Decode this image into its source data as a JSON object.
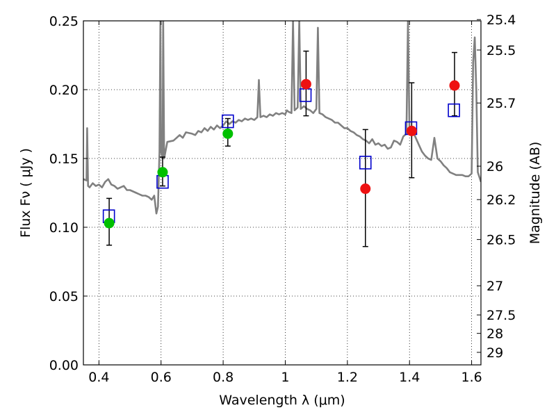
{
  "chart_data": {
    "type": "scatter",
    "title": "",
    "xlabel": "Wavelength  λ (μm)",
    "ylabel": "Flux  Fν  ( μJy )",
    "ylabel_right": "Magnitude (AB)",
    "xlim": [
      0.35,
      1.63
    ],
    "ylim": [
      0.0,
      0.25
    ],
    "grid": true,
    "x_ticks": [
      0.4,
      0.6,
      0.8,
      1.0,
      1.2,
      1.4,
      1.6
    ],
    "x_tick_labels": [
      "0.4",
      "0.6",
      "0.8",
      "1",
      "1.2",
      "1.4",
      "1.6"
    ],
    "y_ticks": [
      0.0,
      0.05,
      0.1,
      0.15,
      0.2,
      0.25
    ],
    "y_tick_labels": [
      "0.00",
      "0.05",
      "0.10",
      "0.15",
      "0.20",
      "0.25"
    ],
    "right_ticks": [
      {
        "label": "25.4",
        "flux": 0.2509
      },
      {
        "label": "25.5",
        "flux": 0.2288
      },
      {
        "label": "25.7",
        "flux": 0.1903
      },
      {
        "label": "26",
        "flux": 0.1444
      },
      {
        "label": "26.2",
        "flux": 0.1201
      },
      {
        "label": "26.5",
        "flux": 0.0911
      },
      {
        "label": "27",
        "flux": 0.0575
      },
      {
        "label": "27.5",
        "flux": 0.0363
      },
      {
        "label": "28",
        "flux": 0.0229
      },
      {
        "label": "29",
        "flux": 0.0091
      }
    ],
    "series": [
      {
        "kind": "line",
        "color": "#808080",
        "points": [
          [
            0.35,
            0.135
          ],
          [
            0.36,
            0.134
          ],
          [
            0.362,
            0.172
          ],
          [
            0.365,
            0.13
          ],
          [
            0.37,
            0.129
          ],
          [
            0.38,
            0.132
          ],
          [
            0.39,
            0.13
          ],
          [
            0.4,
            0.131
          ],
          [
            0.41,
            0.129
          ],
          [
            0.42,
            0.133
          ],
          [
            0.43,
            0.135
          ],
          [
            0.44,
            0.131
          ],
          [
            0.45,
            0.13
          ],
          [
            0.46,
            0.128
          ],
          [
            0.47,
            0.129
          ],
          [
            0.48,
            0.13
          ],
          [
            0.49,
            0.127
          ],
          [
            0.5,
            0.127
          ],
          [
            0.51,
            0.126
          ],
          [
            0.52,
            0.125
          ],
          [
            0.53,
            0.124
          ],
          [
            0.54,
            0.123
          ],
          [
            0.55,
            0.123
          ],
          [
            0.56,
            0.122
          ],
          [
            0.57,
            0.12
          ],
          [
            0.578,
            0.123
          ],
          [
            0.585,
            0.11
          ],
          [
            0.59,
            0.115
          ],
          [
            0.595,
            0.155
          ],
          [
            0.598,
            0.25
          ],
          [
            0.6,
            0.155
          ],
          [
            0.605,
            0.15
          ],
          [
            0.607,
            0.25
          ],
          [
            0.61,
            0.15
          ],
          [
            0.62,
            0.162
          ],
          [
            0.64,
            0.163
          ],
          [
            0.65,
            0.165
          ],
          [
            0.66,
            0.167
          ],
          [
            0.67,
            0.165
          ],
          [
            0.68,
            0.169
          ],
          [
            0.7,
            0.168
          ],
          [
            0.71,
            0.167
          ],
          [
            0.72,
            0.17
          ],
          [
            0.73,
            0.169
          ],
          [
            0.74,
            0.172
          ],
          [
            0.75,
            0.17
          ],
          [
            0.76,
            0.173
          ],
          [
            0.77,
            0.171
          ],
          [
            0.78,
            0.174
          ],
          [
            0.79,
            0.172
          ],
          [
            0.8,
            0.174
          ],
          [
            0.81,
            0.177
          ],
          [
            0.82,
            0.175
          ],
          [
            0.83,
            0.177
          ],
          [
            0.84,
            0.176
          ],
          [
            0.85,
            0.178
          ],
          [
            0.86,
            0.177
          ],
          [
            0.87,
            0.179
          ],
          [
            0.88,
            0.178
          ],
          [
            0.89,
            0.179
          ],
          [
            0.9,
            0.178
          ],
          [
            0.91,
            0.18
          ],
          [
            0.915,
            0.207
          ],
          [
            0.92,
            0.18
          ],
          [
            0.93,
            0.181
          ],
          [
            0.94,
            0.18
          ],
          [
            0.95,
            0.182
          ],
          [
            0.96,
            0.181
          ],
          [
            0.97,
            0.183
          ],
          [
            0.98,
            0.182
          ],
          [
            0.99,
            0.183
          ],
          [
            1.0,
            0.182
          ],
          [
            1.005,
            0.185
          ],
          [
            1.01,
            0.184
          ],
          [
            1.02,
            0.183
          ],
          [
            1.025,
            0.25
          ],
          [
            1.03,
            0.185
          ],
          [
            1.04,
            0.187
          ],
          [
            1.045,
            0.25
          ],
          [
            1.05,
            0.186
          ],
          [
            1.06,
            0.188
          ],
          [
            1.07,
            0.186
          ],
          [
            1.08,
            0.185
          ],
          [
            1.09,
            0.183
          ],
          [
            1.1,
            0.186
          ],
          [
            1.105,
            0.245
          ],
          [
            1.11,
            0.183
          ],
          [
            1.12,
            0.182
          ],
          [
            1.13,
            0.18
          ],
          [
            1.14,
            0.179
          ],
          [
            1.15,
            0.178
          ],
          [
            1.16,
            0.176
          ],
          [
            1.17,
            0.176
          ],
          [
            1.18,
            0.174
          ],
          [
            1.19,
            0.172
          ],
          [
            1.2,
            0.172
          ],
          [
            1.21,
            0.17
          ],
          [
            1.22,
            0.169
          ],
          [
            1.23,
            0.167
          ],
          [
            1.24,
            0.166
          ],
          [
            1.25,
            0.164
          ],
          [
            1.26,
            0.163
          ],
          [
            1.27,
            0.161
          ],
          [
            1.28,
            0.164
          ],
          [
            1.29,
            0.16
          ],
          [
            1.3,
            0.161
          ],
          [
            1.31,
            0.159
          ],
          [
            1.32,
            0.16
          ],
          [
            1.33,
            0.157
          ],
          [
            1.34,
            0.158
          ],
          [
            1.35,
            0.163
          ],
          [
            1.36,
            0.162
          ],
          [
            1.37,
            0.16
          ],
          [
            1.38,
            0.166
          ],
          [
            1.39,
            0.168
          ],
          [
            1.395,
            0.25
          ],
          [
            1.4,
            0.17
          ],
          [
            1.41,
            0.17
          ],
          [
            1.42,
            0.165
          ],
          [
            1.43,
            0.16
          ],
          [
            1.44,
            0.155
          ],
          [
            1.45,
            0.152
          ],
          [
            1.46,
            0.15
          ],
          [
            1.47,
            0.149
          ],
          [
            1.48,
            0.165
          ],
          [
            1.49,
            0.15
          ],
          [
            1.5,
            0.148
          ],
          [
            1.51,
            0.145
          ],
          [
            1.52,
            0.143
          ],
          [
            1.53,
            0.14
          ],
          [
            1.54,
            0.139
          ],
          [
            1.55,
            0.138
          ],
          [
            1.56,
            0.138
          ],
          [
            1.57,
            0.138
          ],
          [
            1.58,
            0.137
          ],
          [
            1.59,
            0.137
          ],
          [
            1.6,
            0.139
          ],
          [
            1.605,
            0.22
          ],
          [
            1.61,
            0.238
          ],
          [
            1.615,
            0.2
          ],
          [
            1.62,
            0.14
          ],
          [
            1.63,
            0.133
          ]
        ]
      },
      {
        "kind": "open-square",
        "color": "#0000cc",
        "points": [
          [
            0.432,
            0.108
          ],
          [
            0.605,
            0.133
          ],
          [
            0.815,
            0.177
          ],
          [
            1.065,
            0.196
          ],
          [
            1.258,
            0.147
          ],
          [
            1.405,
            0.172
          ],
          [
            1.543,
            0.185
          ]
        ]
      },
      {
        "kind": "filled-circle",
        "color": "#00c000",
        "points": [
          [
            0.433,
            0.103
          ],
          [
            0.605,
            0.14
          ],
          [
            0.815,
            0.168
          ]
        ]
      },
      {
        "kind": "filled-circle",
        "color": "#ee1111",
        "points": [
          [
            1.067,
            0.204
          ],
          [
            1.258,
            0.128
          ],
          [
            1.407,
            0.17
          ],
          [
            1.545,
            0.203
          ]
        ]
      },
      {
        "kind": "errorbar",
        "color": "#000000",
        "bars": [
          [
            0.433,
            0.087,
            0.121
          ],
          [
            0.605,
            0.13,
            0.151
          ],
          [
            0.815,
            0.159,
            0.179
          ],
          [
            1.067,
            0.181,
            0.228
          ],
          [
            1.258,
            0.086,
            0.171
          ],
          [
            1.407,
            0.136,
            0.205
          ],
          [
            1.545,
            0.181,
            0.227
          ]
        ]
      }
    ]
  }
}
